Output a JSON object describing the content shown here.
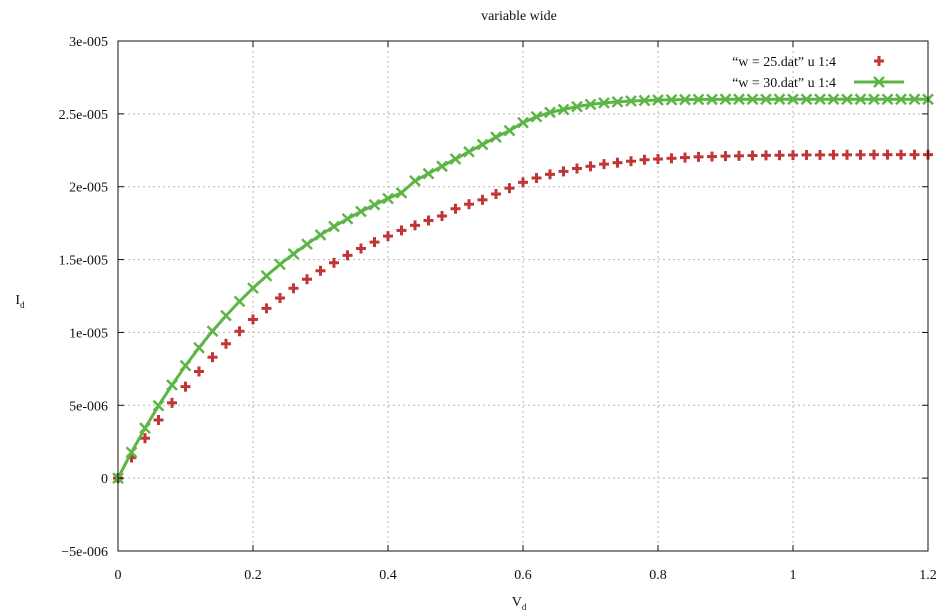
{
  "chart_data": {
    "type": "line",
    "title": "variable wide",
    "xlabel": "V",
    "xlabel_sub": "d",
    "ylabel": "I",
    "ylabel_sub": "d",
    "xlim": [
      0,
      1.2
    ],
    "ylim": [
      -5e-06,
      3e-05
    ],
    "x_ticks": [
      {
        "value": 0,
        "label": "0"
      },
      {
        "value": 0.2,
        "label": "0.2"
      },
      {
        "value": 0.4,
        "label": "0.4"
      },
      {
        "value": 0.6,
        "label": "0.6"
      },
      {
        "value": 0.8,
        "label": "0.8"
      },
      {
        "value": 1.0,
        "label": "1"
      },
      {
        "value": 1.2,
        "label": "1.2"
      }
    ],
    "y_ticks": [
      {
        "value": -5e-06,
        "label": "−5e-006"
      },
      {
        "value": 0,
        "label": "0"
      },
      {
        "value": 5e-06,
        "label": "5e-006"
      },
      {
        "value": 1e-05,
        "label": "1e-005"
      },
      {
        "value": 1.5e-05,
        "label": "1.5e-005"
      },
      {
        "value": 2e-05,
        "label": "2e-005"
      },
      {
        "value": 2.5e-05,
        "label": "2.5e-005"
      },
      {
        "value": 3e-05,
        "label": "3e-005"
      }
    ],
    "grid": true,
    "legend_position": "top-right",
    "x": [
      0,
      0.02,
      0.04,
      0.06,
      0.08,
      0.1,
      0.12,
      0.14,
      0.16,
      0.18,
      0.2,
      0.22,
      0.24,
      0.26,
      0.28,
      0.3,
      0.32,
      0.34,
      0.36,
      0.38,
      0.4,
      0.42,
      0.44,
      0.46,
      0.48,
      0.5,
      0.52,
      0.54,
      0.56,
      0.58,
      0.6,
      0.62,
      0.64,
      0.66,
      0.68,
      0.7,
      0.72,
      0.74,
      0.76,
      0.78,
      0.8,
      0.82,
      0.84,
      0.86,
      0.88,
      0.9,
      0.92,
      0.94,
      0.96,
      0.98,
      1.0,
      1.02,
      1.04,
      1.06,
      1.08,
      1.1,
      1.12,
      1.14,
      1.16,
      1.18,
      1.2
    ],
    "series": [
      {
        "name": "“w = 25.dat” u 1:4",
        "color": "#c03636",
        "style": "points",
        "marker": "plus",
        "values": [
          0,
          1.41e-06,
          2.74e-06,
          3.99e-06,
          5.17e-06,
          6.28e-06,
          7.32e-06,
          8.3e-06,
          9.22e-06,
          1.008e-05,
          1.089e-05,
          1.165e-05,
          1.236e-05,
          1.303e-05,
          1.365e-05,
          1.423e-05,
          1.478e-05,
          1.529e-05,
          1.576e-05,
          1.62e-05,
          1.661e-05,
          1.7e-05,
          1.735e-05,
          1.768e-05,
          1.799e-05,
          1.849e-05,
          1.88e-05,
          1.91e-05,
          1.95e-05,
          1.99e-05,
          2.03e-05,
          2.06e-05,
          2.085e-05,
          2.105e-05,
          2.125e-05,
          2.14e-05,
          2.155e-05,
          2.165e-05,
          2.175e-05,
          2.185e-05,
          2.19e-05,
          2.195e-05,
          2.2e-05,
          2.205e-05,
          2.207e-05,
          2.21e-05,
          2.212e-05,
          2.214e-05,
          2.215e-05,
          2.216e-05,
          2.217e-05,
          2.218e-05,
          2.218e-05,
          2.219e-05,
          2.219e-05,
          2.219e-05,
          2.22e-05,
          2.22e-05,
          2.22e-05,
          2.22e-05,
          2.22e-05
        ]
      },
      {
        "name": "“w = 30.dat” u 1:4",
        "color": "#5cb545",
        "style": "linespoints",
        "marker": "cross",
        "values": [
          0,
          1.78e-06,
          3.43e-06,
          4.97e-06,
          6.39e-06,
          7.72e-06,
          8.95e-06,
          1.009e-05,
          1.115e-05,
          1.213e-05,
          1.304e-05,
          1.388e-05,
          1.467e-05,
          1.539e-05,
          1.606e-05,
          1.669e-05,
          1.727e-05,
          1.78e-05,
          1.83e-05,
          1.876e-05,
          1.919e-05,
          1.958e-05,
          2.04e-05,
          2.09e-05,
          2.14e-05,
          2.19e-05,
          2.24e-05,
          2.29e-05,
          2.34e-05,
          2.385e-05,
          2.44e-05,
          2.48e-05,
          2.51e-05,
          2.53e-05,
          2.55e-05,
          2.565e-05,
          2.575e-05,
          2.582e-05,
          2.588e-05,
          2.592e-05,
          2.595e-05,
          2.597e-05,
          2.598e-05,
          2.599e-05,
          2.599e-05,
          2.6e-05,
          2.6e-05,
          2.6e-05,
          2.6e-05,
          2.6e-05,
          2.6e-05,
          2.6e-05,
          2.6e-05,
          2.6e-05,
          2.6e-05,
          2.6e-05,
          2.6e-05,
          2.6e-05,
          2.6e-05,
          2.6e-05,
          2.6e-05
        ]
      }
    ]
  }
}
